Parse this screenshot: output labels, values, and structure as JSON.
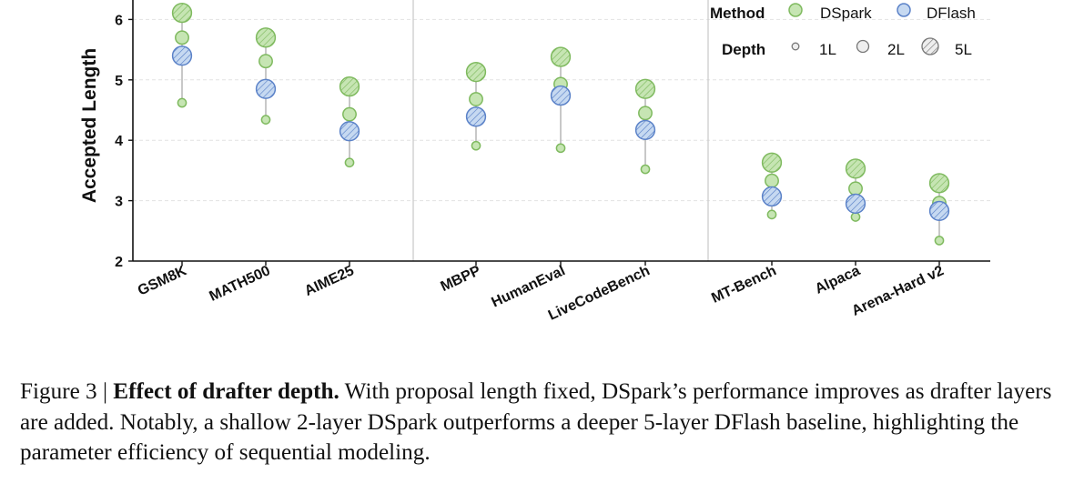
{
  "chart_data": {
    "type": "scatter",
    "ylabel": "Accepted Length",
    "ylim": [
      2,
      6.3
    ],
    "yticks": [
      2,
      3,
      4,
      5,
      6
    ],
    "grid": "horizontal dashed",
    "categories": [
      "GSM8K",
      "MATH500",
      "AIME25",
      "MBPP",
      "HumanEval",
      "LiveCodeBench",
      "MT-Bench",
      "Alpaca",
      "Arena-Hard v2"
    ],
    "groups": [
      [
        0,
        1,
        2
      ],
      [
        3,
        4,
        5
      ],
      [
        6,
        7,
        8
      ]
    ],
    "series": [
      {
        "name": "DSpark",
        "depth": "1L",
        "values": [
          4.62,
          4.34,
          3.63,
          3.91,
          3.87,
          3.52,
          2.77,
          2.73,
          2.34
        ]
      },
      {
        "name": "DSpark",
        "depth": "2L",
        "values": [
          5.7,
          5.31,
          4.43,
          4.68,
          4.93,
          4.45,
          3.33,
          3.2,
          2.96
        ]
      },
      {
        "name": "DSpark",
        "depth": "5L",
        "values": [
          6.11,
          5.7,
          4.89,
          5.13,
          5.38,
          4.85,
          3.63,
          3.53,
          3.29
        ]
      },
      {
        "name": "DFlash",
        "depth": "5L",
        "values": [
          5.4,
          4.85,
          4.15,
          4.39,
          4.74,
          4.17,
          3.07,
          2.95,
          2.83
        ]
      }
    ],
    "colors": {
      "dspark_fill": "#c6e5b3",
      "dspark_edge": "#7fba5f",
      "dflash_fill": "#c6d9f1",
      "dflash_edge": "#5b82c8",
      "stem": "#bbbbbb"
    },
    "legend": {
      "placement": "top-right",
      "method_title": "Method",
      "method_items": [
        "DSpark",
        "DFlash"
      ],
      "depth_title": "Depth",
      "depth_items": [
        "1L",
        "2L",
        "5L"
      ]
    }
  },
  "caption": {
    "prefix": "Figure 3 | ",
    "bold": "Effect of drafter depth.",
    "text": " With proposal length fixed, DSpark’s performance improves as drafter layers are added. Notably, a shallow 2-layer DSpark outperforms a deeper 5-layer DFlash baseline, highlighting the parameter efficiency of sequential modeling."
  }
}
